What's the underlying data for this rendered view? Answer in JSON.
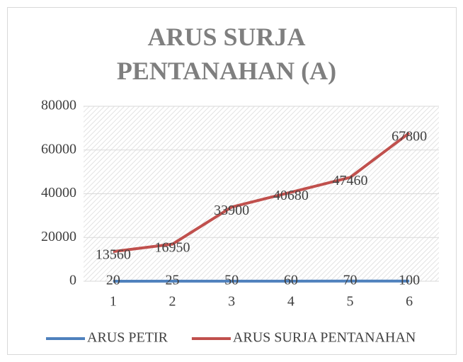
{
  "chart_data": {
    "type": "line",
    "title": "ARUS SURJA PENTANAHAN (A)",
    "categories": [
      "1",
      "2",
      "3",
      "4",
      "5",
      "6"
    ],
    "series": [
      {
        "name": "ARUS PETIR",
        "color": "#4f81bd",
        "values": [
          20,
          25,
          50,
          60,
          70,
          100
        ]
      },
      {
        "name": "ARUS SURJA PENTANAHAN",
        "color": "#c0504d",
        "values": [
          13560,
          16950,
          33900,
          40680,
          47460,
          67800
        ]
      }
    ],
    "ylim": [
      0,
      80000
    ],
    "yticks": [
      0,
      20000,
      40000,
      60000,
      80000
    ],
    "data_labels": true,
    "legend": "bottom"
  }
}
